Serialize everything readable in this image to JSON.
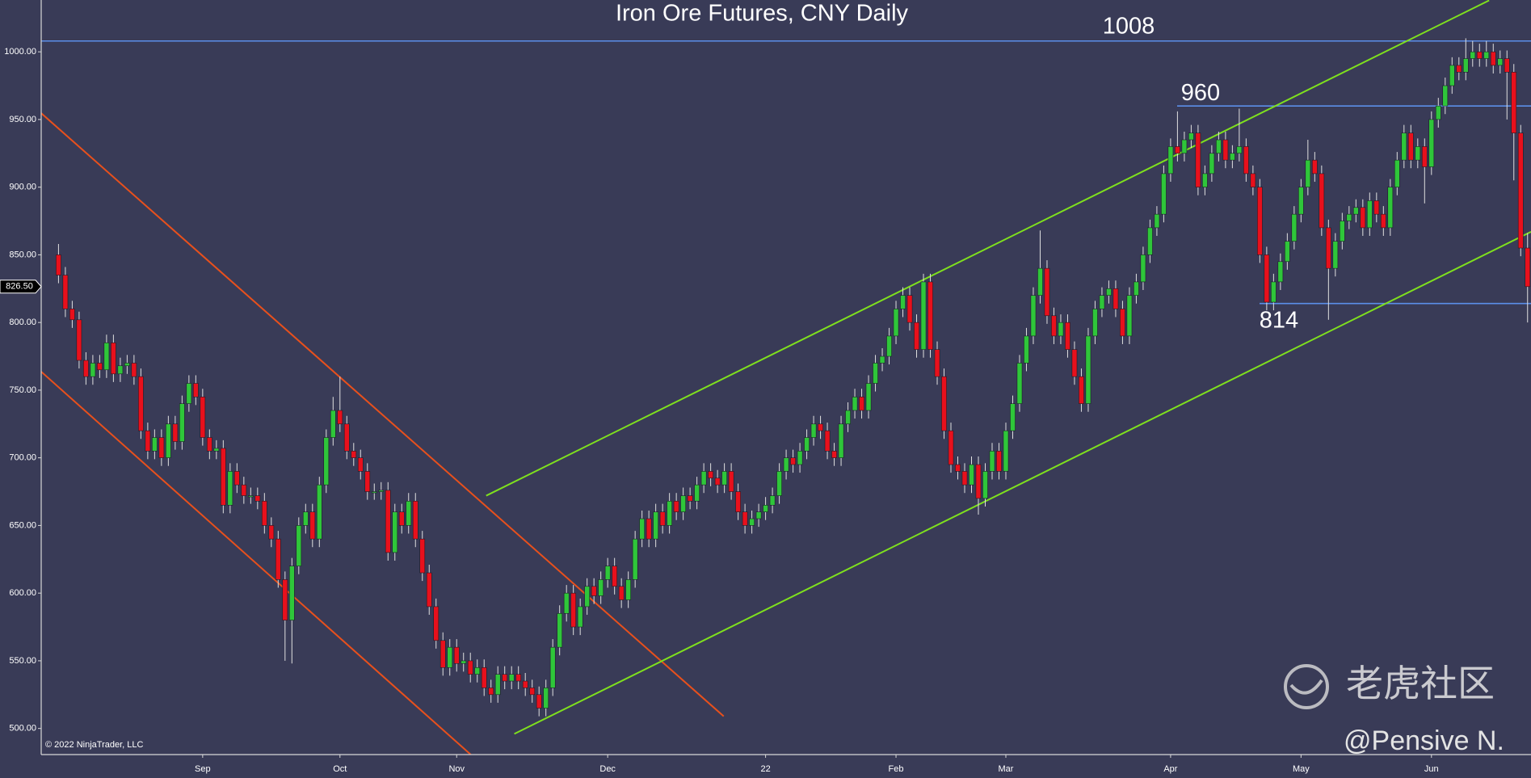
{
  "chart_data": {
    "type": "candlestick",
    "title": "Iron Ore Futures, CNY Daily",
    "categories": [
      null,
      null,
      null,
      null,
      null,
      null,
      null,
      null,
      null,
      null,
      null,
      null,
      null,
      null,
      null,
      null,
      null,
      null,
      null,
      null,
      null,
      "Sep",
      null,
      null,
      null,
      null,
      null,
      null,
      null,
      null,
      null,
      null,
      null,
      null,
      null,
      null,
      null,
      null,
      null,
      null,
      null,
      "Oct",
      null,
      null,
      null,
      null,
      null,
      null,
      null,
      null,
      null,
      null,
      null,
      null,
      null,
      null,
      null,
      null,
      "Nov",
      null,
      null,
      null,
      null,
      null,
      null,
      null,
      null,
      null,
      null,
      null,
      null,
      null,
      null,
      null,
      null,
      null,
      null,
      null,
      null,
      null,
      "Dec",
      null,
      null,
      null,
      null,
      null,
      null,
      null,
      null,
      null,
      null,
      null,
      null,
      null,
      null,
      null,
      null,
      null,
      null,
      null,
      null,
      null,
      null,
      "22",
      null,
      null,
      null,
      null,
      null,
      null,
      null,
      null,
      null,
      null,
      null,
      null,
      null,
      null,
      null,
      null,
      null,
      null,
      "Feb",
      null,
      null,
      null,
      null,
      null,
      null,
      null,
      null,
      null,
      null,
      null,
      null,
      null,
      null,
      null,
      "Mar",
      null,
      null,
      null,
      null,
      null,
      null,
      null,
      null,
      null,
      null,
      null,
      null,
      null,
      null,
      null,
      null,
      null,
      null,
      null,
      null,
      null,
      null,
      null,
      "Apr",
      null,
      null,
      null,
      null,
      null,
      null,
      null,
      null,
      null,
      null,
      null,
      null,
      null,
      null,
      null,
      null,
      null,
      null,
      "May",
      null,
      null,
      null,
      null,
      null,
      null,
      null,
      null,
      null,
      null,
      null,
      null,
      null,
      null,
      null,
      null,
      null,
      null,
      "Jun",
      null,
      null,
      null,
      null,
      null,
      null,
      null,
      null,
      null,
      null,
      null,
      null,
      null,
      null
    ],
    "ohlc": [
      [
        850,
        858,
        829,
        835
      ],
      [
        835,
        841,
        804,
        810
      ],
      [
        810,
        816,
        796,
        802
      ],
      [
        802,
        808,
        766,
        772
      ],
      [
        772,
        778,
        754,
        760
      ],
      [
        760,
        776,
        754,
        770
      ],
      [
        770,
        776,
        759,
        765
      ],
      [
        765,
        791,
        759,
        785
      ],
      [
        785,
        791,
        756,
        762
      ],
      [
        762,
        774,
        756,
        768
      ],
      [
        768,
        776,
        762,
        770
      ],
      [
        770,
        776,
        754,
        760
      ],
      [
        760,
        766,
        714,
        720
      ],
      [
        720,
        726,
        699,
        705
      ],
      [
        705,
        721,
        699,
        715
      ],
      [
        715,
        721,
        694,
        700
      ],
      [
        700,
        731,
        694,
        725
      ],
      [
        725,
        731,
        706,
        712
      ],
      [
        712,
        746,
        706,
        740
      ],
      [
        740,
        761,
        734,
        755
      ],
      [
        755,
        761,
        739,
        745
      ],
      [
        745,
        751,
        709,
        715
      ],
      [
        715,
        721,
        699,
        705
      ],
      [
        705,
        713,
        699,
        707
      ],
      [
        707,
        713,
        659,
        665
      ],
      [
        665,
        696,
        659,
        690
      ],
      [
        690,
        696,
        674,
        680
      ],
      [
        680,
        686,
        666,
        672
      ],
      [
        672,
        678,
        666,
        672
      ],
      [
        672,
        678,
        662,
        668
      ],
      [
        668,
        674,
        644,
        650
      ],
      [
        650,
        656,
        634,
        640
      ],
      [
        640,
        646,
        604,
        610
      ],
      [
        610,
        616,
        550,
        580
      ],
      [
        580,
        626,
        548,
        620
      ],
      [
        620,
        656,
        614,
        650
      ],
      [
        650,
        666,
        644,
        660
      ],
      [
        660,
        666,
        634,
        640
      ],
      [
        640,
        686,
        634,
        680
      ],
      [
        680,
        721,
        674,
        715
      ],
      [
        715,
        745,
        709,
        735
      ],
      [
        735,
        760,
        719,
        725
      ],
      [
        725,
        731,
        699,
        705
      ],
      [
        705,
        711,
        694,
        700
      ],
      [
        700,
        706,
        684,
        690
      ],
      [
        690,
        696,
        669,
        675
      ],
      [
        675,
        681,
        669,
        675
      ],
      [
        675,
        682,
        669,
        676
      ],
      [
        676,
        682,
        624,
        630
      ],
      [
        630,
        666,
        624,
        660
      ],
      [
        660,
        666,
        644,
        650
      ],
      [
        650,
        674,
        644,
        668
      ],
      [
        668,
        674,
        634,
        640
      ],
      [
        640,
        646,
        609,
        615
      ],
      [
        615,
        621,
        584,
        590
      ],
      [
        590,
        596,
        559,
        565
      ],
      [
        565,
        571,
        539,
        545
      ],
      [
        545,
        566,
        539,
        560
      ],
      [
        560,
        566,
        542,
        548
      ],
      [
        548,
        556,
        542,
        550
      ],
      [
        550,
        556,
        534,
        540
      ],
      [
        540,
        551,
        534,
        545
      ],
      [
        545,
        551,
        524,
        530
      ],
      [
        530,
        536,
        519,
        525
      ],
      [
        525,
        546,
        519,
        540
      ],
      [
        540,
        546,
        529,
        535
      ],
      [
        535,
        546,
        529,
        540
      ],
      [
        540,
        546,
        529,
        535
      ],
      [
        535,
        541,
        524,
        530
      ],
      [
        530,
        536,
        519,
        525
      ],
      [
        525,
        531,
        509,
        515
      ],
      [
        515,
        536,
        509,
        530
      ],
      [
        530,
        566,
        524,
        560
      ],
      [
        560,
        591,
        554,
        585
      ],
      [
        585,
        606,
        579,
        600
      ],
      [
        600,
        606,
        569,
        575
      ],
      [
        575,
        596,
        569,
        590
      ],
      [
        590,
        611,
        584,
        605
      ],
      [
        605,
        611,
        592,
        598
      ],
      [
        598,
        616,
        592,
        610
      ],
      [
        610,
        626,
        604,
        620
      ],
      [
        620,
        626,
        599,
        605
      ],
      [
        605,
        611,
        589,
        595
      ],
      [
        595,
        616,
        589,
        610
      ],
      [
        610,
        646,
        604,
        640
      ],
      [
        640,
        661,
        634,
        655
      ],
      [
        655,
        661,
        634,
        640
      ],
      [
        640,
        666,
        634,
        660
      ],
      [
        660,
        666,
        644,
        650
      ],
      [
        650,
        674,
        644,
        668
      ],
      [
        668,
        674,
        654,
        660
      ],
      [
        660,
        678,
        654,
        672
      ],
      [
        672,
        678,
        662,
        668
      ],
      [
        668,
        686,
        662,
        680
      ],
      [
        680,
        696,
        674,
        690
      ],
      [
        690,
        696,
        679,
        685
      ],
      [
        685,
        691,
        674,
        680
      ],
      [
        680,
        696,
        674,
        690
      ],
      [
        690,
        696,
        669,
        675
      ],
      [
        675,
        681,
        654,
        660
      ],
      [
        660,
        666,
        644,
        650
      ],
      [
        650,
        661,
        644,
        655
      ],
      [
        655,
        666,
        649,
        660
      ],
      [
        660,
        671,
        654,
        665
      ],
      [
        665,
        678,
        659,
        672
      ],
      [
        672,
        696,
        666,
        690
      ],
      [
        690,
        706,
        684,
        700
      ],
      [
        700,
        706,
        689,
        695
      ],
      [
        695,
        711,
        689,
        705
      ],
      [
        705,
        721,
        699,
        715
      ],
      [
        715,
        731,
        709,
        725
      ],
      [
        725,
        731,
        714,
        720
      ],
      [
        720,
        726,
        699,
        705
      ],
      [
        705,
        711,
        694,
        700
      ],
      [
        700,
        731,
        694,
        725
      ],
      [
        725,
        741,
        719,
        735
      ],
      [
        735,
        751,
        729,
        745
      ],
      [
        745,
        751,
        729,
        735
      ],
      [
        735,
        761,
        729,
        755
      ],
      [
        755,
        776,
        749,
        770
      ],
      [
        770,
        781,
        764,
        775
      ],
      [
        775,
        796,
        769,
        790
      ],
      [
        790,
        816,
        784,
        810
      ],
      [
        810,
        826,
        804,
        820
      ],
      [
        820,
        826,
        794,
        800
      ],
      [
        800,
        806,
        774,
        780
      ],
      [
        780,
        836,
        774,
        830
      ],
      [
        830,
        836,
        774,
        780
      ],
      [
        780,
        786,
        754,
        760
      ],
      [
        760,
        766,
        714,
        720
      ],
      [
        720,
        726,
        689,
        695
      ],
      [
        695,
        701,
        684,
        690
      ],
      [
        690,
        696,
        674,
        680
      ],
      [
        680,
        701,
        674,
        695
      ],
      [
        695,
        701,
        658,
        670
      ],
      [
        670,
        696,
        664,
        690
      ],
      [
        690,
        711,
        684,
        705
      ],
      [
        705,
        711,
        684,
        690
      ],
      [
        690,
        726,
        684,
        720
      ],
      [
        720,
        746,
        714,
        740
      ],
      [
        740,
        776,
        734,
        770
      ],
      [
        770,
        796,
        764,
        790
      ],
      [
        790,
        826,
        784,
        820
      ],
      [
        820,
        868,
        814,
        840
      ],
      [
        840,
        846,
        799,
        805
      ],
      [
        805,
        811,
        784,
        790
      ],
      [
        790,
        806,
        784,
        800
      ],
      [
        800,
        806,
        774,
        780
      ],
      [
        780,
        786,
        754,
        760
      ],
      [
        760,
        766,
        734,
        740
      ],
      [
        740,
        796,
        734,
        790
      ],
      [
        790,
        816,
        784,
        810
      ],
      [
        810,
        826,
        804,
        820
      ],
      [
        820,
        831,
        814,
        825
      ],
      [
        825,
        831,
        804,
        810
      ],
      [
        810,
        816,
        784,
        790
      ],
      [
        790,
        826,
        784,
        820
      ],
      [
        820,
        836,
        814,
        830
      ],
      [
        830,
        856,
        824,
        850
      ],
      [
        850,
        876,
        844,
        870
      ],
      [
        870,
        886,
        864,
        880
      ],
      [
        880,
        916,
        874,
        910
      ],
      [
        910,
        936,
        904,
        930
      ],
      [
        930,
        956,
        919,
        925
      ],
      [
        925,
        941,
        919,
        935
      ],
      [
        935,
        946,
        929,
        940
      ],
      [
        940,
        946,
        894,
        900
      ],
      [
        900,
        916,
        894,
        910
      ],
      [
        910,
        931,
        904,
        925
      ],
      [
        925,
        941,
        919,
        935
      ],
      [
        935,
        941,
        914,
        920
      ],
      [
        920,
        931,
        914,
        925
      ],
      [
        925,
        958,
        919,
        930
      ],
      [
        930,
        936,
        904,
        910
      ],
      [
        910,
        916,
        894,
        900
      ],
      [
        900,
        906,
        844,
        850
      ],
      [
        850,
        856,
        809,
        815
      ],
      [
        815,
        836,
        809,
        830
      ],
      [
        830,
        851,
        824,
        845
      ],
      [
        845,
        866,
        839,
        860
      ],
      [
        860,
        886,
        854,
        880
      ],
      [
        880,
        906,
        874,
        900
      ],
      [
        900,
        935,
        894,
        920
      ],
      [
        920,
        926,
        904,
        910
      ],
      [
        910,
        916,
        864,
        870
      ],
      [
        870,
        876,
        802,
        840
      ],
      [
        840,
        866,
        834,
        860
      ],
      [
        860,
        881,
        854,
        875
      ],
      [
        875,
        886,
        869,
        880
      ],
      [
        880,
        891,
        874,
        885
      ],
      [
        885,
        891,
        864,
        870
      ],
      [
        870,
        896,
        864,
        890
      ],
      [
        890,
        896,
        874,
        880
      ],
      [
        880,
        886,
        864,
        870
      ],
      [
        870,
        906,
        864,
        900
      ],
      [
        900,
        926,
        894,
        920
      ],
      [
        920,
        946,
        914,
        940
      ],
      [
        940,
        946,
        914,
        920
      ],
      [
        920,
        936,
        914,
        930
      ],
      [
        930,
        936,
        888,
        915
      ],
      [
        915,
        956,
        909,
        950
      ],
      [
        950,
        966,
        944,
        960
      ],
      [
        960,
        981,
        954,
        975
      ],
      [
        975,
        996,
        969,
        990
      ],
      [
        990,
        996,
        979,
        985
      ],
      [
        985,
        1010,
        979,
        995
      ],
      [
        995,
        1008,
        989,
        1000
      ],
      [
        1000,
        1006,
        989,
        995
      ],
      [
        995,
        1008,
        989,
        1000
      ],
      [
        1000,
        1006,
        984,
        990
      ],
      [
        990,
        1001,
        984,
        995
      ],
      [
        995,
        1001,
        950,
        985
      ],
      [
        985,
        991,
        905,
        940
      ],
      [
        940,
        946,
        849,
        855
      ],
      [
        855,
        866,
        800,
        826.5
      ]
    ],
    "up_color": "#2fc63a",
    "down_color": "#e8101c",
    "ylim": [
      480.7,
      1038.3
    ],
    "yticks": [
      {
        "value": 500,
        "label": "500.00"
      },
      {
        "value": 550,
        "label": "550.00"
      },
      {
        "value": 600,
        "label": "600.00"
      },
      {
        "value": 650,
        "label": "650.00"
      },
      {
        "value": 700,
        "label": "700.00"
      },
      {
        "value": 750,
        "label": "750.00"
      },
      {
        "value": 800,
        "label": "800.00"
      },
      {
        "value": 850,
        "label": "850.00"
      },
      {
        "value": 900,
        "label": "900.00"
      },
      {
        "value": 950,
        "label": "950.00"
      },
      {
        "value": 1000,
        "label": "1000.00"
      }
    ],
    "price_marker": {
      "value": 826.5,
      "label": "826.50"
    },
    "levels": [
      {
        "value": 1008,
        "label": "1008",
        "color": "#5b8ee8"
      },
      {
        "value": 960,
        "label": "960",
        "color": "#5b8ee8"
      },
      {
        "value": 814,
        "label": "814",
        "color": "#5b8ee8"
      }
    ],
    "trendlines": [
      {
        "color": "#e8501c",
        "points": [
          [
            -2.6,
            955
          ],
          [
            96.9,
            509
          ]
        ]
      },
      {
        "color": "#e8501c",
        "points": [
          [
            -2.6,
            764
          ],
          [
            60.2,
            480
          ]
        ]
      },
      {
        "color": "#7fe01e",
        "points": [
          [
            62.3,
            672
          ],
          [
            208.4,
            1038
          ]
        ]
      },
      {
        "color": "#7fe01e",
        "points": [
          [
            66.4,
            496
          ],
          [
            214.5,
            867
          ]
        ]
      }
    ],
    "copyright": "© 2022 NinjaTrader, LLC",
    "watermark": "老虎社区",
    "author": "@Pensive N."
  }
}
